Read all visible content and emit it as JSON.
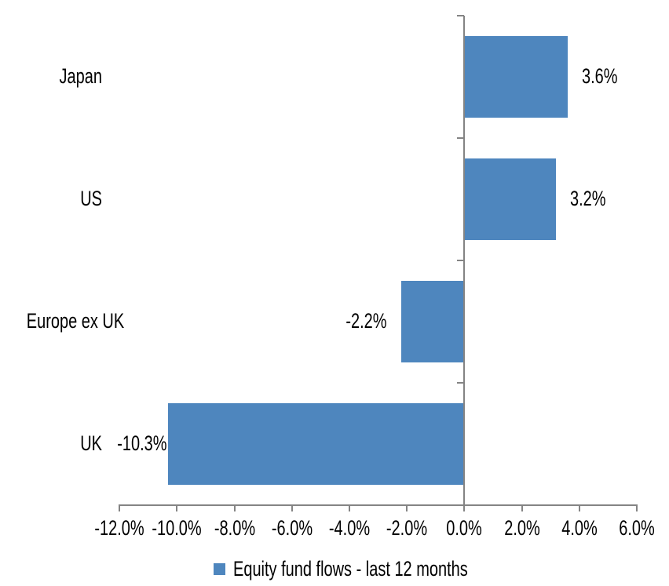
{
  "chart_data": {
    "type": "bar",
    "orientation": "horizontal",
    "categories": [
      "Japan",
      "US",
      "Europe ex UK",
      "UK"
    ],
    "values": [
      3.6,
      3.2,
      -2.2,
      -10.3
    ],
    "data_labels": [
      "3.6%",
      "3.2%",
      "-2.2%",
      "-10.3%"
    ],
    "series": [
      {
        "name": "Equity fund flows - last 12 months",
        "values": [
          3.6,
          3.2,
          -2.2,
          -10.3
        ]
      }
    ],
    "xlim": [
      -12,
      6
    ],
    "x_tick_step": 2,
    "x_tick_labels": [
      "-12.0%",
      "-10.0%",
      "-8.0%",
      "-6.0%",
      "-4.0%",
      "-2.0%",
      "0.0%",
      "2.0%",
      "4.0%",
      "6.0%"
    ],
    "grid": false,
    "legend": {
      "label": "Equity fund flows - last 12 months",
      "position": "bottom"
    },
    "colors": {
      "bar": "#4E86BE",
      "axis": "#848484",
      "text": "#000000",
      "background": "#FFFFFF"
    }
  }
}
